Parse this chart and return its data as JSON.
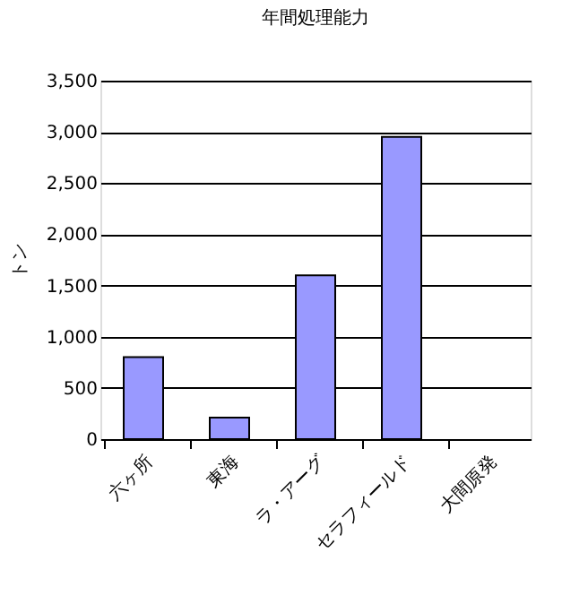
{
  "chart_data": {
    "type": "bar",
    "title": "年間処理能力",
    "ylabel": "トン",
    "categories": [
      "六ヶ所",
      "東海",
      "ラ・アーグ",
      "セラフィールド",
      "大間原発"
    ],
    "values": [
      800,
      210,
      1600,
      2950,
      null
    ],
    "color": "#9999ff",
    "ylim": [
      0,
      3500
    ],
    "yticks": [
      0,
      500,
      {
        "value": 1000,
        "label": "1,000"
      },
      {
        "value": 1500,
        "label": "1,500"
      },
      {
        "value": 2000,
        "label": "2,000"
      },
      {
        "value": 2500,
        "label": "2,500"
      },
      {
        "value": 3000,
        "label": "3,000"
      },
      {
        "value": 3500,
        "label": "3,500"
      }
    ],
    "grid": "y"
  }
}
